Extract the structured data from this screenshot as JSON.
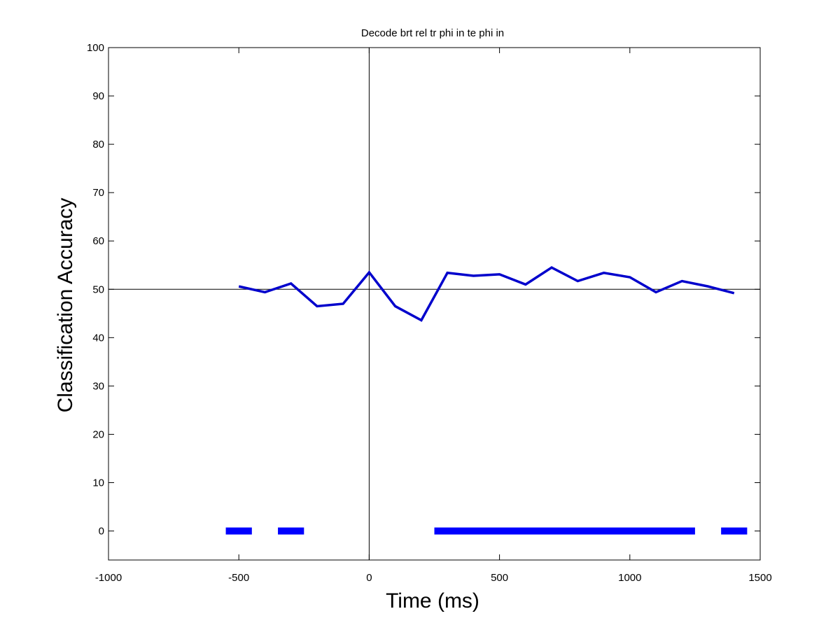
{
  "chart_data": {
    "type": "line",
    "title": "Decode brt rel tr phi in te phi in",
    "xlabel": "Time (ms)",
    "ylabel": "Classification Accuracy",
    "xlim": [
      -1000,
      1500
    ],
    "ylim": [
      -6,
      100
    ],
    "xticks": [
      -1000,
      -500,
      0,
      500,
      1000,
      1500
    ],
    "yticks": [
      0,
      10,
      20,
      30,
      40,
      50,
      60,
      70,
      80,
      90,
      100
    ],
    "grid": false,
    "reference_lines": {
      "vertical_x": 0,
      "horizontal_y": 50
    },
    "series": [
      {
        "color": "#0000cc",
        "x": [
          -500,
          -400,
          -300,
          -200,
          -100,
          0,
          100,
          200,
          300,
          400,
          500,
          600,
          700,
          800,
          900,
          1000,
          1100,
          1200,
          1300,
          1400
        ],
        "y": [
          50.6,
          49.4,
          51.2,
          46.5,
          47.0,
          53.5,
          46.5,
          43.6,
          53.4,
          52.8,
          53.1,
          51.0,
          54.5,
          51.7,
          53.4,
          52.5,
          49.4,
          51.7,
          50.6,
          49.2
        ]
      }
    ],
    "significance_bars": {
      "color": "#0000ff",
      "y": 0,
      "segments": [
        [
          -550,
          -450
        ],
        [
          -350,
          -250
        ],
        [
          250,
          1250
        ],
        [
          1350,
          1450
        ]
      ]
    }
  }
}
